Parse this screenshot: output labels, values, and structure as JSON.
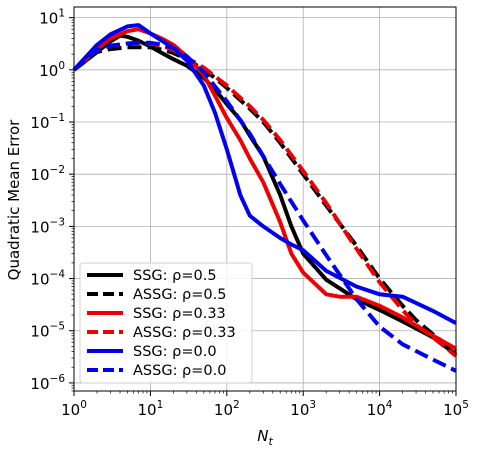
{
  "chart_data": {
    "type": "line",
    "title": "",
    "xlabel": "N_t",
    "ylabel": "Quadratic Mean Error",
    "xscale": "log",
    "yscale": "log",
    "xlim": [
      1,
      100000
    ],
    "ylim": [
      7e-07,
      16
    ],
    "grid": true,
    "legend_position": "lower-left",
    "x_tick_labels": [
      {
        "value": 1,
        "base": "10",
        "exp": "0"
      },
      {
        "value": 10,
        "base": "10",
        "exp": "1"
      },
      {
        "value": 100,
        "base": "10",
        "exp": "2"
      },
      {
        "value": 1000,
        "base": "10",
        "exp": "3"
      },
      {
        "value": 10000,
        "base": "10",
        "exp": "4"
      },
      {
        "value": 100000,
        "base": "10",
        "exp": "5"
      }
    ],
    "y_tick_labels": [
      {
        "value": 1e-06,
        "base": "10",
        "exp": "−6"
      },
      {
        "value": 1e-05,
        "base": "10",
        "exp": "−5"
      },
      {
        "value": 0.0001,
        "base": "10",
        "exp": "−4"
      },
      {
        "value": 0.001,
        "base": "10",
        "exp": "−3"
      },
      {
        "value": 0.01,
        "base": "10",
        "exp": "−2"
      },
      {
        "value": 0.1,
        "base": "10",
        "exp": "−1"
      },
      {
        "value": 1,
        "base": "10",
        "exp": "0"
      },
      {
        "value": 10,
        "base": "10",
        "exp": "1"
      }
    ],
    "series": [
      {
        "name": "SSG: ρ=0.5",
        "color": "#000000",
        "dashed": false,
        "x": [
          1,
          2,
          3,
          4,
          5,
          7,
          10,
          15,
          20,
          30,
          50,
          70,
          100,
          150,
          200,
          300,
          500,
          700,
          1000,
          2000,
          5000,
          10000,
          20000,
          50000,
          100000
        ],
        "y": [
          1.0,
          2.2,
          3.5,
          4.5,
          4.3,
          3.6,
          2.8,
          2.0,
          1.6,
          1.2,
          0.7,
          0.42,
          0.22,
          0.11,
          0.055,
          0.022,
          0.004,
          0.001,
          0.0003,
          9.5e-05,
          4e-05,
          2.5e-05,
          1.5e-05,
          7.5e-06,
          3.5e-06
        ]
      },
      {
        "name": "ASSG: ρ=0.5",
        "color": "#000000",
        "dashed": true,
        "x": [
          1,
          2,
          3,
          5,
          7,
          10,
          15,
          20,
          30,
          50,
          70,
          100,
          200,
          300,
          500,
          1000,
          2000,
          5000,
          10000,
          20000,
          30000,
          50000,
          100000
        ],
        "y": [
          1.0,
          2.2,
          2.5,
          2.7,
          2.7,
          2.7,
          2.4,
          2.1,
          1.6,
          1.0,
          0.7,
          0.45,
          0.18,
          0.1,
          0.04,
          0.01,
          0.0025,
          0.00042,
          0.0001,
          3e-05,
          1.6e-05,
          8.5e-06,
          4e-06
        ]
      },
      {
        "name": "SSG: ρ=0.33",
        "color": "#ee0000",
        "dashed": false,
        "x": [
          1,
          2,
          3,
          5,
          7,
          10,
          15,
          20,
          30,
          50,
          70,
          100,
          150,
          200,
          300,
          500,
          700,
          1000,
          2000,
          3000,
          5000,
          10000,
          20000,
          50000,
          100000
        ],
        "y": [
          1.0,
          2.5,
          4.0,
          5.5,
          6.0,
          5.0,
          3.8,
          3.0,
          1.8,
          0.8,
          0.32,
          0.12,
          0.045,
          0.02,
          0.007,
          0.0012,
          0.0003,
          0.00013,
          5e-05,
          4.5e-05,
          4.5e-05,
          3e-05,
          1.8e-05,
          8e-06,
          4.5e-06
        ]
      },
      {
        "name": "ASSG: ρ=0.33",
        "color": "#ee0000",
        "dashed": true,
        "x": [
          1,
          2,
          3,
          5,
          7,
          10,
          15,
          20,
          30,
          50,
          100,
          200,
          300,
          500,
          1000,
          2000,
          5000,
          10000,
          20000,
          30000,
          50000,
          100000
        ],
        "y": [
          1.0,
          2.4,
          2.9,
          3.2,
          3.3,
          3.2,
          2.8,
          2.4,
          1.7,
          1.1,
          0.5,
          0.2,
          0.11,
          0.045,
          0.0115,
          0.0028,
          0.00037,
          8.5e-05,
          2.5e-05,
          1.3e-05,
          7.5e-06,
          3.3e-06
        ]
      },
      {
        "name": "SSG: ρ=0.0",
        "color": "#0000ee",
        "dashed": false,
        "x": [
          1,
          2,
          3,
          5,
          7,
          10,
          15,
          20,
          30,
          50,
          70,
          100,
          150,
          200,
          300,
          500,
          700,
          1000,
          2000,
          5000,
          10000,
          20000,
          50000,
          100000
        ],
        "y": [
          1.0,
          3.0,
          4.8,
          6.8,
          7.2,
          5.0,
          3.4,
          2.6,
          1.5,
          0.5,
          0.15,
          0.03,
          0.004,
          0.0016,
          0.001,
          0.0006,
          0.00045,
          0.00035,
          0.00014,
          7e-05,
          5e-05,
          4.5e-05,
          2.4e-05,
          1.4e-05
        ]
      },
      {
        "name": "ASSG: ρ=0.0",
        "color": "#0000ee",
        "dashed": true,
        "x": [
          1,
          2,
          3,
          5,
          7,
          10,
          15,
          20,
          30,
          50,
          100,
          200,
          300,
          500,
          1000,
          2000,
          5000,
          10000,
          20000,
          50000,
          100000
        ],
        "y": [
          1.0,
          2.4,
          2.9,
          3.2,
          3.3,
          3.3,
          3.0,
          2.6,
          1.8,
          0.9,
          0.25,
          0.06,
          0.022,
          0.0065,
          0.0013,
          0.00028,
          4e-05,
          1.2e-05,
          5.5e-06,
          2.8e-06,
          1.7e-06
        ]
      }
    ]
  }
}
